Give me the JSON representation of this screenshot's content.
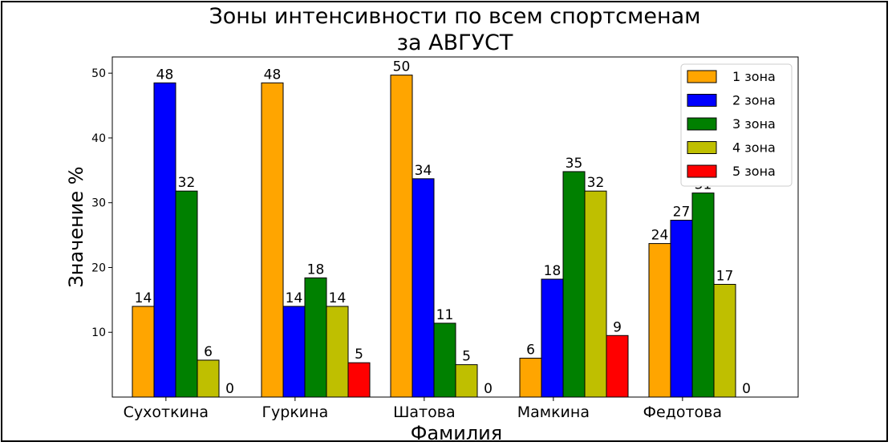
{
  "chart_data": {
    "type": "bar",
    "title_line1": "Зоны интенсивности по всем спортсменам",
    "title_line2": "за АВГУСТ",
    "xlabel": "Фамилия",
    "ylabel": "Значение %",
    "categories": [
      "Сухоткина",
      "Гуркина",
      "Шатова",
      "Мамкина",
      "Федотова"
    ],
    "yticks": [
      10,
      20,
      30,
      40,
      50
    ],
    "ylim": [
      0,
      52.5
    ],
    "grid": false,
    "legend_position": "top-right",
    "series": [
      {
        "name": "1 зона",
        "color": "#ffa500",
        "values": [
          14,
          48.5,
          49.7,
          6,
          23.7
        ],
        "labels": [
          "14",
          "48",
          "50",
          "6",
          "24"
        ]
      },
      {
        "name": "2 зона",
        "color": "#0000ff",
        "values": [
          48.5,
          14,
          33.7,
          18.2,
          27.3
        ],
        "labels": [
          "48",
          "14",
          "34",
          "18",
          "27"
        ]
      },
      {
        "name": "3 зона",
        "color": "#008000",
        "values": [
          31.8,
          18.4,
          11.4,
          34.8,
          31.5
        ],
        "labels": [
          "32",
          "18",
          "11",
          "35",
          "31"
        ]
      },
      {
        "name": "4 зона",
        "color": "#bfbf00",
        "values": [
          5.7,
          14,
          5,
          31.8,
          17.4
        ],
        "labels": [
          "6",
          "14",
          "5",
          "32",
          "17"
        ]
      },
      {
        "name": "5 зона",
        "color": "#ff0000",
        "values": [
          0,
          5.3,
          0,
          9.5,
          0
        ],
        "labels": [
          "0",
          "5",
          "0",
          "9",
          "0"
        ]
      }
    ]
  }
}
